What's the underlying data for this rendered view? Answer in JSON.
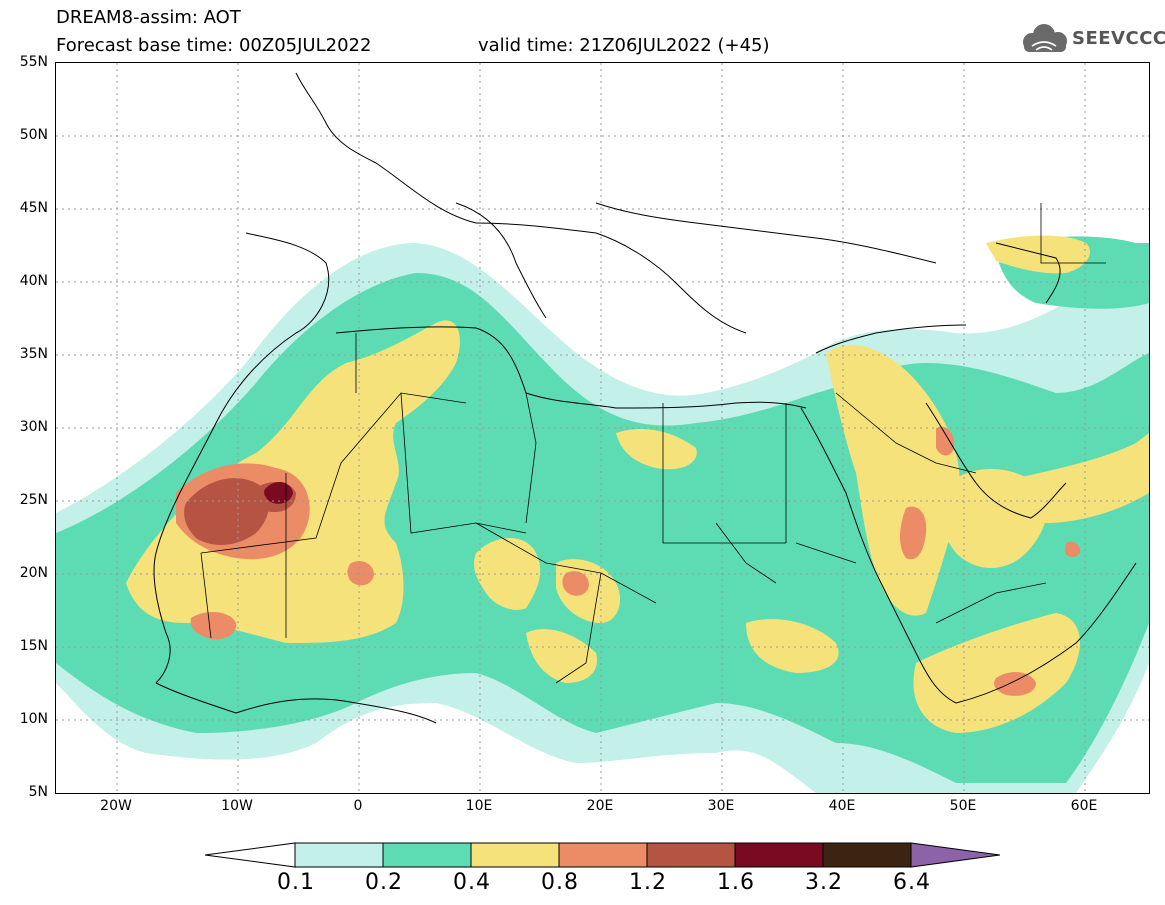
{
  "header": {
    "line1": "DREAM8-assim: AOT",
    "line2": "Forecast base time: 00Z05JUL2022",
    "line3": "valid time: 21Z06JUL2022 (+45)",
    "logo_text": "SEEVCCC"
  },
  "axes": {
    "lat_labels": [
      "55N",
      "50N",
      "45N",
      "40N",
      "35N",
      "30N",
      "25N",
      "20N",
      "15N",
      "10N",
      "5N"
    ],
    "lon_labels": [
      "20W",
      "10W",
      "0",
      "10E",
      "20E",
      "30E",
      "40E",
      "50E",
      "60E"
    ]
  },
  "legend": {
    "labels": [
      "0.1",
      "0.2",
      "0.4",
      "0.8",
      "1.2",
      "1.6",
      "3.2",
      "6.4"
    ],
    "colors": {
      "below": "#ffffff",
      "c1": "#c3f0e8",
      "c2": "#5ddcb4",
      "c3": "#f6e27a",
      "c4": "#eb8c66",
      "c5": "#b65443",
      "c6": "#7a0a22",
      "c7": "#3b2512",
      "above": "#8c62a8"
    }
  },
  "colors": {
    "border": "#000000",
    "grid": "#9a9a9a"
  }
}
